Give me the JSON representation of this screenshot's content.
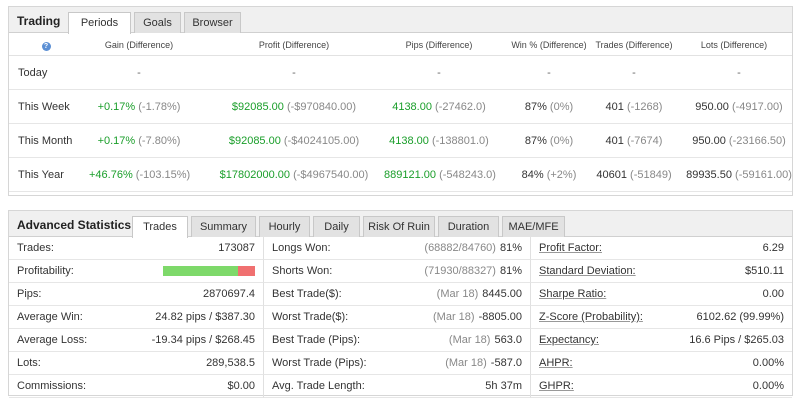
{
  "trading": {
    "title": "Trading",
    "tabs": [
      "Periods",
      "Goals",
      "Browser"
    ],
    "columns": [
      "Gain (Difference)",
      "Profit (Difference)",
      "Pips (Difference)",
      "Win % (Difference)",
      "Trades (Difference)",
      "Lots (Difference)"
    ],
    "rows": [
      {
        "label": "Today",
        "gain": "-",
        "gain_diff": "",
        "profit": "-",
        "profit_diff": "",
        "pips": "-",
        "pips_diff": "",
        "win": "-",
        "win_diff": "",
        "trades": "-",
        "trades_diff": "",
        "lots": "-",
        "lots_diff": ""
      },
      {
        "label": "This Week",
        "gain": "+0.17%",
        "gain_diff": "(-1.78%)",
        "profit": "$92085.00",
        "profit_diff": "(-$970840.00)",
        "pips": "4138.00",
        "pips_diff": "(-27462.0)",
        "win": "87%",
        "win_diff": "(0%)",
        "trades": "401",
        "trades_diff": "(-1268)",
        "lots": "950.00",
        "lots_diff": "(-4917.00)"
      },
      {
        "label": "This Month",
        "gain": "+0.17%",
        "gain_diff": "(-7.80%)",
        "profit": "$92085.00",
        "profit_diff": "(-$4024105.00)",
        "pips": "4138.00",
        "pips_diff": "(-138801.0)",
        "win": "87%",
        "win_diff": "(0%)",
        "trades": "401",
        "trades_diff": "(-7674)",
        "lots": "950.00",
        "lots_diff": "(-23166.50)"
      },
      {
        "label": "This Year",
        "gain": "+46.76%",
        "gain_diff": "(-103.15%)",
        "profit": "$17802000.00",
        "profit_diff": "(-$4967540.00)",
        "pips": "889121.00",
        "pips_diff": "(-548243.0)",
        "win": "84%",
        "win_diff": "(+2%)",
        "trades": "40601",
        "trades_diff": "(-51849)",
        "lots": "89935.50",
        "lots_diff": "(-59161.00)"
      }
    ]
  },
  "advanced": {
    "title": "Advanced Statistics",
    "tabs": [
      "Trades",
      "Summary",
      "Hourly",
      "Daily",
      "Risk Of Ruin",
      "Duration",
      "MAE/MFE"
    ],
    "col1": [
      {
        "k": "Trades:",
        "v": "173087"
      },
      {
        "k": "Profitability:",
        "v": ""
      },
      {
        "k": "Pips:",
        "v": "2870697.4"
      },
      {
        "k": "Average Win:",
        "v": "24.82 pips / $387.30"
      },
      {
        "k": "Average Loss:",
        "v": "-19.34 pips / $268.45"
      },
      {
        "k": "Lots:",
        "v": "289,538.5"
      },
      {
        "k": "Commissions:",
        "v": "$0.00"
      }
    ],
    "profitability_fraction": 0.81,
    "col2": [
      {
        "k": "Longs Won:",
        "sub": "(68882/84760)",
        "v": "81%"
      },
      {
        "k": "Shorts Won:",
        "sub": "(71930/88327)",
        "v": "81%"
      },
      {
        "k": "Best Trade($):",
        "sub": "(Mar 18)",
        "v": "8445.00"
      },
      {
        "k": "Worst Trade($):",
        "sub": "(Mar 18)",
        "v": "-8805.00"
      },
      {
        "k": "Best Trade (Pips):",
        "sub": "(Mar 18)",
        "v": "563.0"
      },
      {
        "k": "Worst Trade (Pips):",
        "sub": "(Mar 18)",
        "v": "-587.0"
      },
      {
        "k": "Avg. Trade Length:",
        "sub": "",
        "v": "5h 37m"
      }
    ],
    "col3": [
      {
        "k": "Profit Factor:",
        "v": "6.29"
      },
      {
        "k": "Standard Deviation:",
        "v": "$510.11"
      },
      {
        "k": "Sharpe Ratio:",
        "v": "0.00"
      },
      {
        "k": "Z-Score (Probability):",
        "v": "6102.62 (99.99%)"
      },
      {
        "k": "Expectancy:",
        "v": "16.6 Pips / $265.03"
      },
      {
        "k": "AHPR:",
        "v": "0.00%"
      },
      {
        "k": "GHPR:",
        "v": "0.00%"
      }
    ]
  }
}
